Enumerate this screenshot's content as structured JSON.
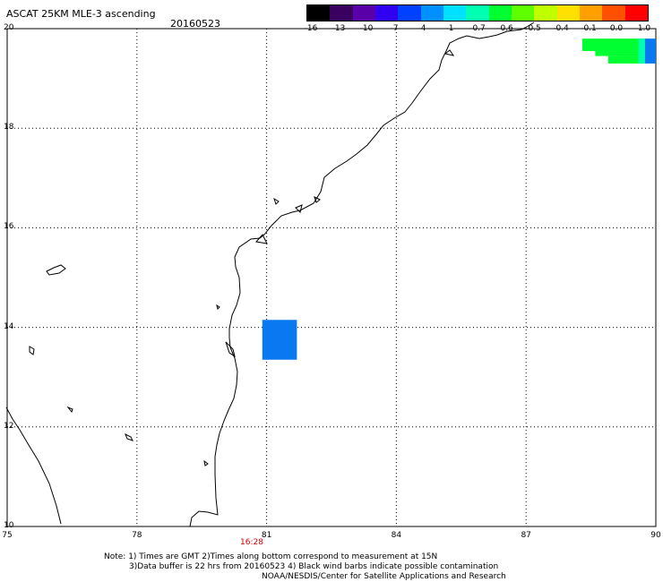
{
  "title": "ASCAT 25KM MLE-3 ascending",
  "date": "20160523",
  "colorbar": {
    "labels": [
      "-16",
      "-13",
      "-10",
      "-7",
      "-4",
      "-1",
      "-0.7",
      "-0.6",
      "-0.5",
      "-0.4",
      "-0.1",
      "0.0",
      "1.0"
    ],
    "colors": [
      "#000000",
      "#3a0060",
      "#5a00a8",
      "#3000f0",
      "#0040ff",
      "#0090ff",
      "#00e0ff",
      "#00ffb0",
      "#00ff30",
      "#60ff00",
      "#c0ff00",
      "#ffe000",
      "#ffa000",
      "#ff5000",
      "#ff0000"
    ]
  },
  "axes": {
    "lat_labels": [
      "20",
      "18",
      "16",
      "14",
      "12",
      "10"
    ],
    "lon_labels": [
      "75",
      "78",
      "81",
      "84",
      "87",
      "90"
    ],
    "lat_range": [
      10,
      20
    ],
    "lon_range": [
      75,
      90
    ],
    "grid": "dotted"
  },
  "time_label": "16:28",
  "swath_cells": [
    {
      "lon0": 80.9,
      "lon1": 81.7,
      "lat0": 13.35,
      "lat1": 14.15,
      "color": "#0a78f0"
    },
    {
      "lon0": 88.3,
      "lon1": 89.8,
      "lat0": 19.55,
      "lat1": 19.8,
      "color": "#00ff30"
    },
    {
      "lon0": 88.6,
      "lon1": 89.8,
      "lat0": 19.45,
      "lat1": 19.55,
      "color": "#00ff30"
    },
    {
      "lon0": 88.9,
      "lon1": 89.8,
      "lat0": 19.3,
      "lat1": 19.45,
      "color": "#00ff30"
    },
    {
      "lon0": 89.6,
      "lon1": 89.75,
      "lat0": 19.3,
      "lat1": 19.8,
      "color": "#00ffb0"
    },
    {
      "lon0": 89.75,
      "lon1": 90.0,
      "lat0": 19.3,
      "lat1": 19.8,
      "color": "#0a78f0"
    }
  ],
  "notes": {
    "line1": "Note: 1) Times are GMT 2)Times along bottom correspond to measurement at 15N",
    "line2": "3)Data buffer is 22 hrs from 20160523 4) Black wind barbs indicate possible contamination",
    "line3": "NOAA/NESDIS/Center for Satellite Applications and Research"
  }
}
